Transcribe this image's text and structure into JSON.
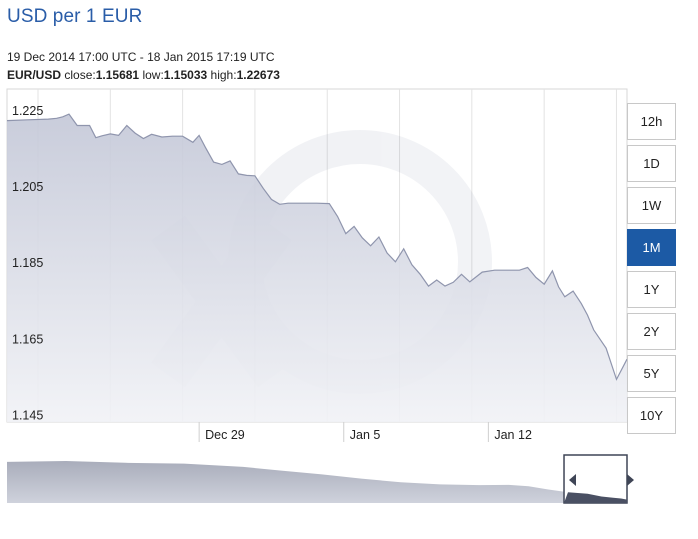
{
  "header": {
    "title": "USD per 1 EUR",
    "date_range": "19 Dec 2014 17:00 UTC - 18 Jan 2015 17:19 UTC",
    "pair": "EUR/USD",
    "close_label": "close:",
    "close_value": "1.15681",
    "low_label": "low:",
    "low_value": "1.15033",
    "high_label": "high:",
    "high_value": "1.22673"
  },
  "range_buttons": {
    "selected": "1M",
    "items": [
      "12h",
      "1D",
      "1W",
      "1M",
      "1Y",
      "2Y",
      "5Y",
      "10Y"
    ]
  },
  "colors": {
    "title": "#2a5da8",
    "area_top": "#c3c7d7",
    "area_bottom": "#f1f2f6",
    "line": "#8f95ad",
    "active_button": "#1c5aa5",
    "grid": "#e3e3e3"
  },
  "chart_data": {
    "type": "area",
    "ylim": [
      1.143,
      1.2305
    ],
    "yticks": [
      1.225,
      1.205,
      1.185,
      1.165,
      1.145
    ],
    "ytick_labels": [
      "1.225",
      "1.205",
      "1.185",
      "1.165",
      "1.145"
    ],
    "xlim": [
      0,
      30.01
    ],
    "xticks": [
      9.3,
      16.3,
      23.3
    ],
    "xtick_labels": [
      "Dec 29",
      "Jan 5",
      "Jan 12"
    ],
    "grid": true,
    "x": [
      0,
      1,
      2,
      2.4,
      2.7,
      3.0,
      3.4,
      4.0,
      4.3,
      4.6,
      5.0,
      5.4,
      5.8,
      6.2,
      6.6,
      7.0,
      7.5,
      8.0,
      8.5,
      9.0,
      9.3,
      9.6,
      10.0,
      10.4,
      10.8,
      11.2,
      11.6,
      12.0,
      12.4,
      12.8,
      13.2,
      13.6,
      14.0,
      14.4,
      15.0,
      15.6,
      16.0,
      16.4,
      16.8,
      17.2,
      17.6,
      18.0,
      18.4,
      18.8,
      19.2,
      19.6,
      20.0,
      20.4,
      20.8,
      21.2,
      21.6,
      22.0,
      22.4,
      23.0,
      23.6,
      24.0,
      24.4,
      24.8,
      25.2,
      25.6,
      26.0,
      26.4,
      26.7,
      27.0,
      27.4,
      27.8,
      28.1,
      28.4,
      29.0,
      29.5,
      30.01
    ],
    "values": [
      1.2222,
      1.2224,
      1.2226,
      1.2228,
      1.2232,
      1.2239,
      1.2209,
      1.2209,
      1.2177,
      1.2182,
      1.2187,
      1.2183,
      1.2209,
      1.2189,
      1.2175,
      1.2186,
      1.2179,
      1.2181,
      1.2181,
      1.2165,
      1.2183,
      1.2152,
      1.2113,
      1.2107,
      1.2116,
      1.2082,
      1.2078,
      1.2077,
      1.2044,
      1.2015,
      1.2002,
      1.2005,
      1.2005,
      1.2005,
      1.2005,
      1.2004,
      1.197,
      1.1925,
      1.1944,
      1.1914,
      1.1893,
      1.1916,
      1.1874,
      1.1851,
      1.1885,
      1.1843,
      1.1818,
      1.1787,
      1.1803,
      1.1787,
      1.1797,
      1.1818,
      1.1798,
      1.1824,
      1.1829,
      1.1829,
      1.1829,
      1.1829,
      1.1836,
      1.181,
      1.1792,
      1.1827,
      1.1785,
      1.1759,
      1.1774,
      1.1741,
      1.1711,
      1.1672,
      1.1624,
      1.1542,
      1.1595
    ],
    "navigator_x": [
      0,
      3,
      6,
      9,
      12,
      14,
      16,
      18,
      20,
      22,
      24,
      25.5,
      26.5,
      27.5,
      28.5,
      29.5,
      30.2,
      30.8,
      31.2,
      31.5
    ],
    "navigator_values": [
      1.2212,
      1.2228,
      1.2196,
      1.2181,
      1.2122,
      1.2054,
      1.1988,
      1.1913,
      1.1846,
      1.1809,
      1.1795,
      1.1799,
      1.1776,
      1.1716,
      1.1666,
      1.1639,
      1.1592,
      1.1568,
      1.1556,
      1.1536
    ],
    "navigator_xlim": [
      0,
      31.5
    ],
    "navigator_ylim": [
      1.1475,
      1.2335
    ],
    "navigator_window": [
      28.3,
      31.5
    ]
  }
}
